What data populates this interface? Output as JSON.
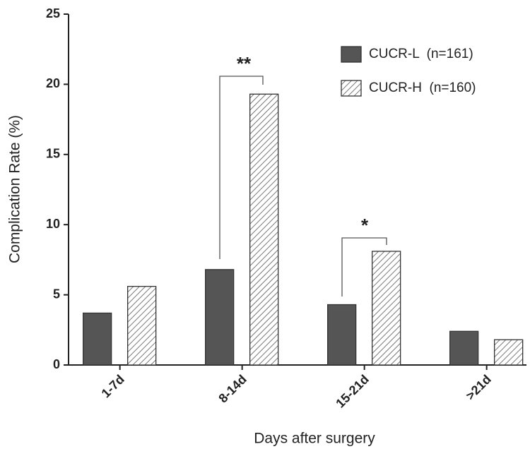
{
  "chart_data": {
    "type": "bar",
    "x_label": "Days after surgery",
    "y_label": "Complication Rate (%)",
    "categories": [
      "1-7d",
      "8-14d",
      "15-21d",
      ">21d"
    ],
    "series": [
      {
        "name": "CUCR-L  (n=161)",
        "color": "#555555",
        "values": [
          3.7,
          6.8,
          4.3,
          2.4
        ]
      },
      {
        "name": "CUCR-H  (n=160)",
        "color": "#ffffff",
        "hatch": true,
        "values": [
          5.6,
          19.3,
          8.1,
          1.8
        ]
      }
    ],
    "ylim": [
      0,
      25
    ],
    "yticks": [
      0,
      5,
      10,
      15,
      20,
      25
    ],
    "annotations": [
      "**",
      "*"
    ],
    "legend": "upper right"
  }
}
